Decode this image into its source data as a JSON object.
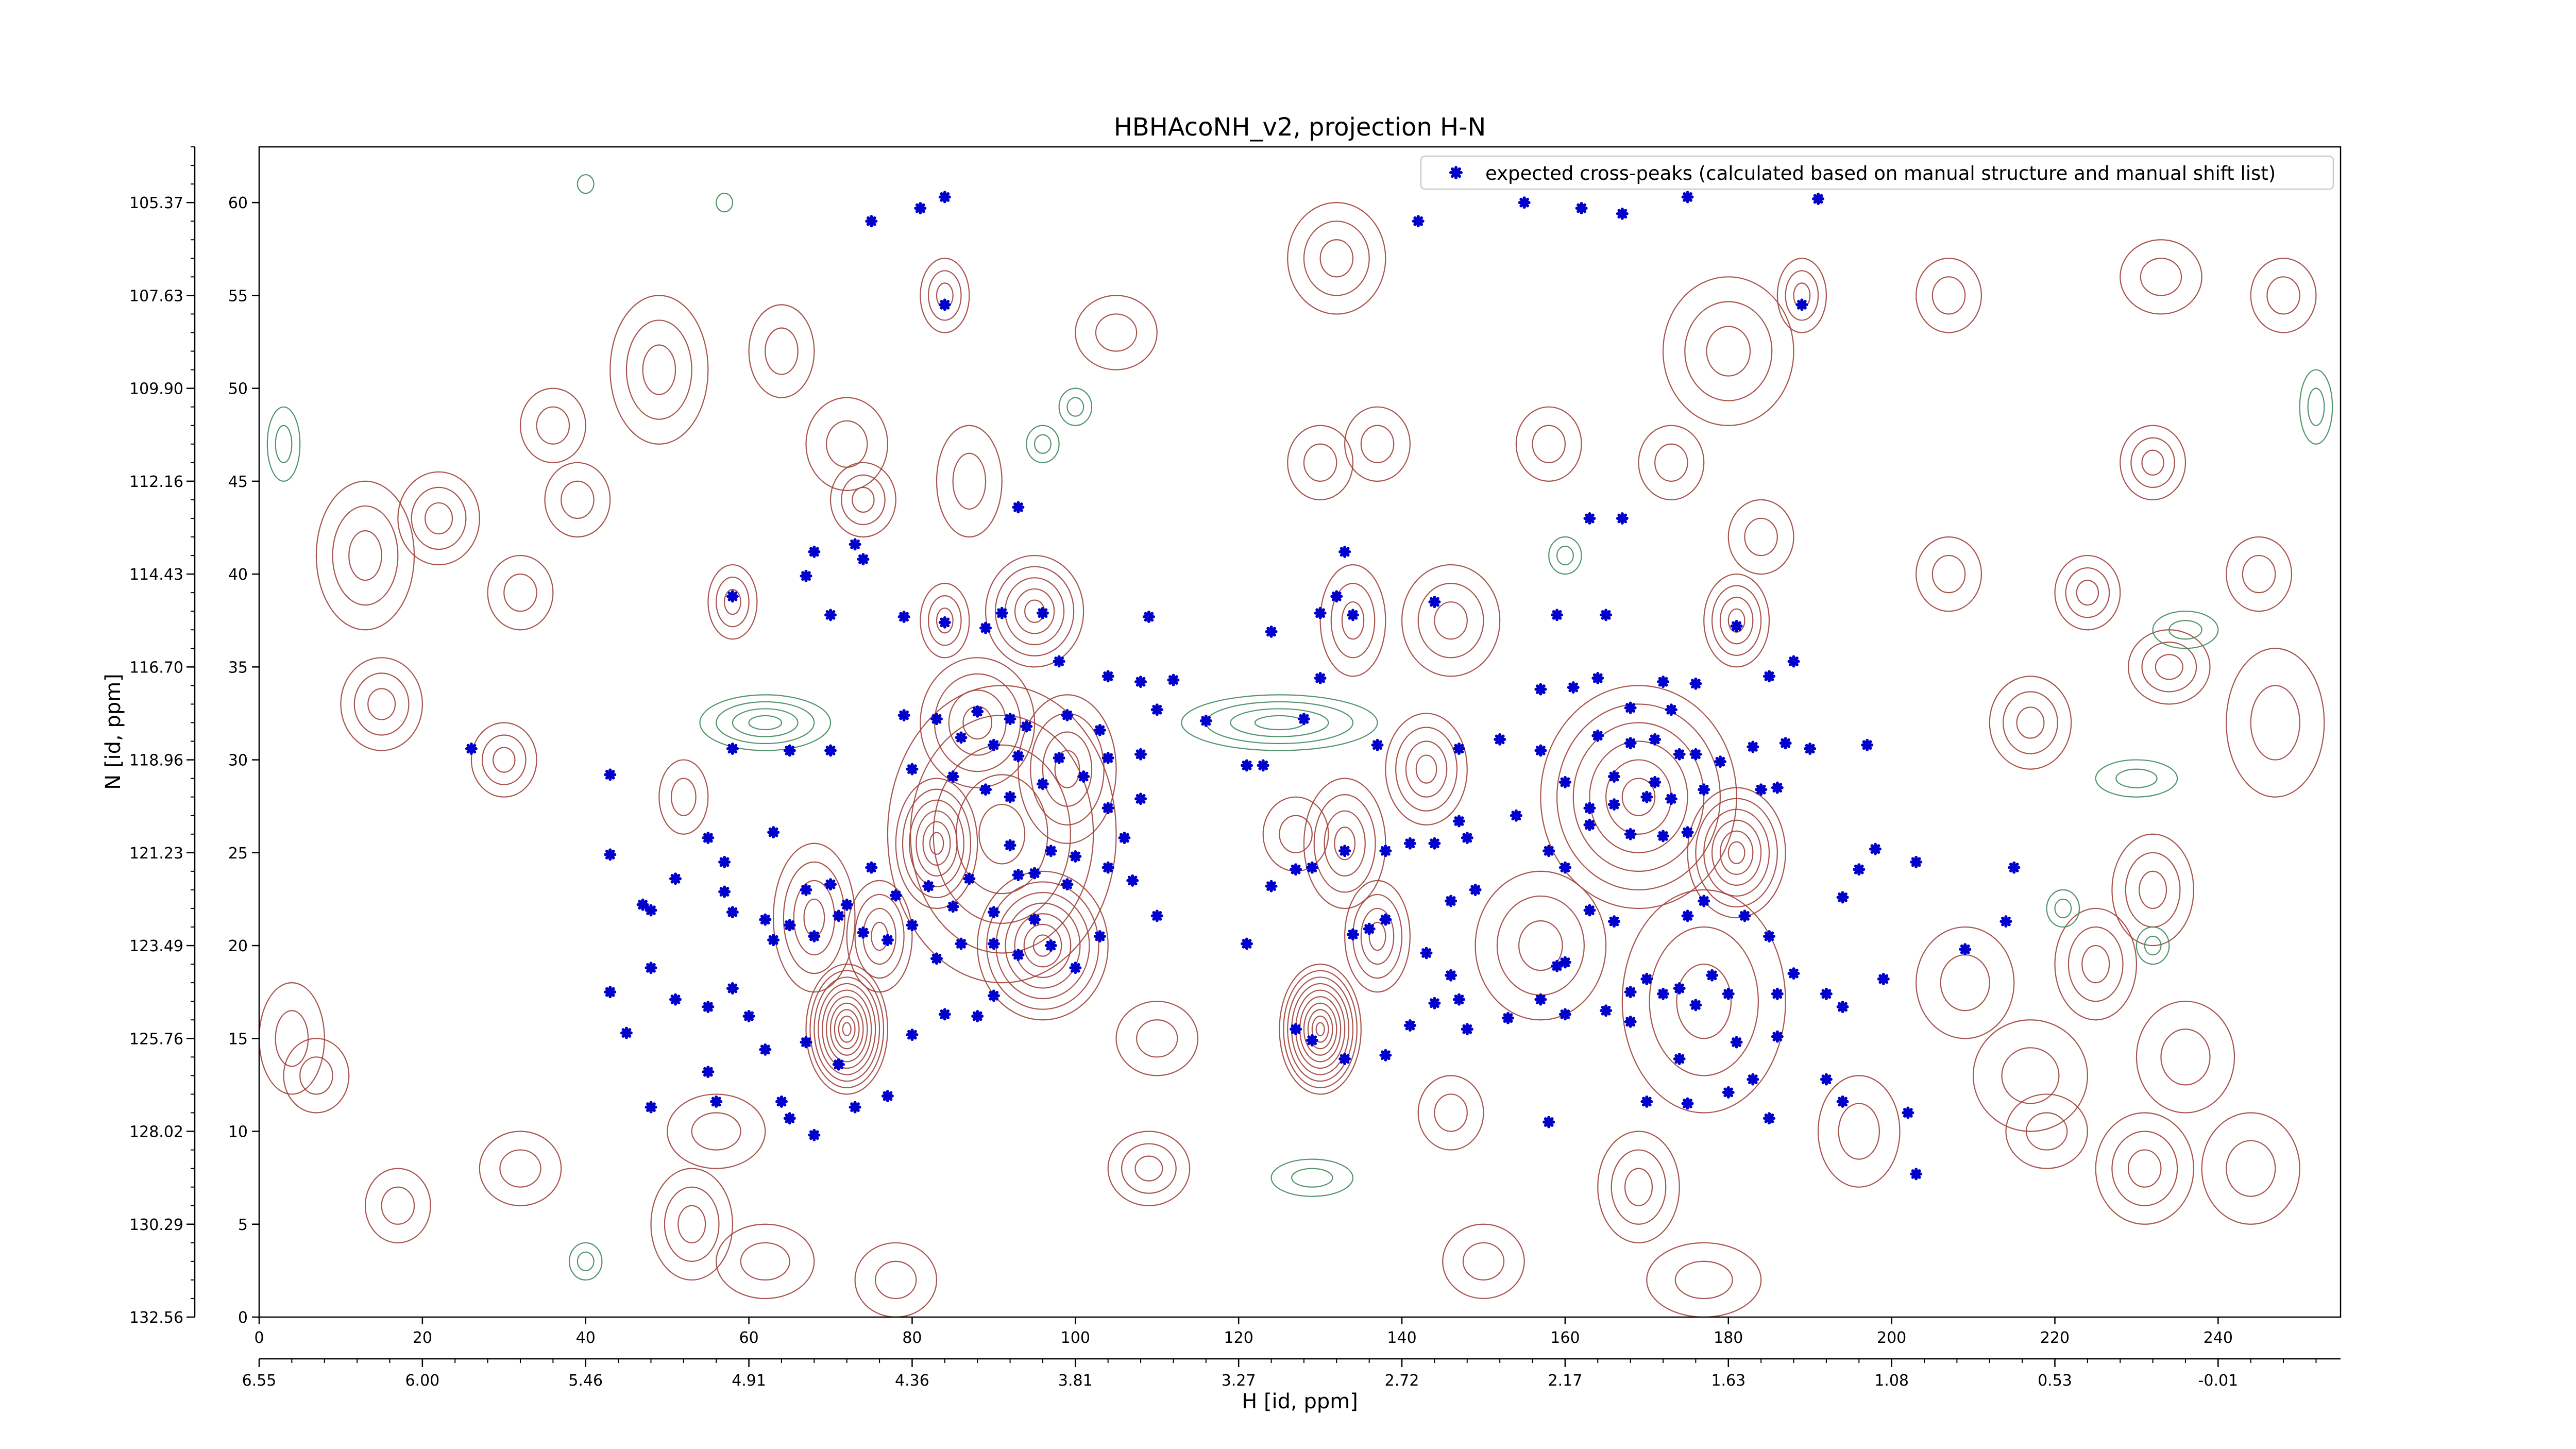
{
  "chart_data": {
    "type": "scatter",
    "title": "HBHAcoNH_v2, projection H-N",
    "xlabel": "H [id, ppm]",
    "ylabel": "N [id, ppm]",
    "xlim": [
      0,
      255
    ],
    "ylim": [
      0,
      63
    ],
    "x_ticks": [
      0,
      20,
      40,
      60,
      80,
      100,
      120,
      140,
      160,
      180,
      200,
      220,
      240
    ],
    "y_ticks": [
      0,
      5,
      10,
      15,
      20,
      25,
      30,
      35,
      40,
      45,
      50,
      55,
      60
    ],
    "x_ppm_labels": [
      "6.55",
      "6.00",
      "5.46",
      "4.91",
      "4.36",
      "3.81",
      "3.27",
      "2.72",
      "2.17",
      "1.63",
      "1.08",
      "0.53",
      "-0.01"
    ],
    "y_ppm_labels": [
      "132.56",
      "130.29",
      "128.02",
      "125.76",
      "123.49",
      "121.23",
      "118.96",
      "116.70",
      "114.43",
      "112.16",
      "109.90",
      "107.63",
      "105.37"
    ],
    "legend": {
      "placement": "top-right",
      "label": "expected cross-peaks (calculated based on manual structure and manual shift list)"
    },
    "colors": {
      "points": "#0000cc",
      "positive_contours": "#a0413a",
      "negative_contours": "#3f8a5a",
      "axes": "#000000"
    },
    "series": [
      {
        "name": "expected cross-peaks (calculated based on manual structure and manual shift list)",
        "points": [
          [
            75,
            59
          ],
          [
            81,
            59.7
          ],
          [
            84,
            60.3
          ],
          [
            142,
            59
          ],
          [
            155,
            60
          ],
          [
            162,
            59.7
          ],
          [
            167,
            59.4
          ],
          [
            175,
            60.3
          ],
          [
            191,
            60.2
          ],
          [
            84,
            54.5
          ],
          [
            189,
            54.5
          ],
          [
            93,
            43.6
          ],
          [
            163,
            43
          ],
          [
            167,
            43
          ],
          [
            73,
            41.6
          ],
          [
            74,
            40.8
          ],
          [
            68,
            41.2
          ],
          [
            67,
            39.9
          ],
          [
            133,
            41.2
          ],
          [
            58,
            38.8
          ],
          [
            70,
            37.8
          ],
          [
            79,
            37.7
          ],
          [
            84,
            37.4
          ],
          [
            89,
            37.1
          ],
          [
            91,
            37.9
          ],
          [
            96,
            37.9
          ],
          [
            109,
            37.7
          ],
          [
            124,
            36.9
          ],
          [
            130,
            37.9
          ],
          [
            132,
            38.8
          ],
          [
            134,
            37.8
          ],
          [
            144,
            38.5
          ],
          [
            159,
            37.8
          ],
          [
            165,
            37.8
          ],
          [
            181,
            37.2
          ],
          [
            98,
            35.3
          ],
          [
            104,
            34.5
          ],
          [
            108,
            34.2
          ],
          [
            110,
            32.7
          ],
          [
            112,
            34.3
          ],
          [
            130,
            34.4
          ],
          [
            157,
            33.8
          ],
          [
            161,
            33.9
          ],
          [
            164,
            34.4
          ],
          [
            172,
            34.2
          ],
          [
            176,
            34.1
          ],
          [
            185,
            34.5
          ],
          [
            188,
            35.3
          ],
          [
            79,
            32.4
          ],
          [
            83,
            32.2
          ],
          [
            88,
            32.6
          ],
          [
            92,
            32.2
          ],
          [
            94,
            31.8
          ],
          [
            99,
            32.4
          ],
          [
            103,
            31.6
          ],
          [
            86,
            31.2
          ],
          [
            90,
            30.8
          ],
          [
            93,
            30.2
          ],
          [
            98,
            30.1
          ],
          [
            104,
            30.1
          ],
          [
            108,
            30.3
          ],
          [
            80,
            29.5
          ],
          [
            85,
            29.1
          ],
          [
            89,
            28.4
          ],
          [
            92,
            28
          ],
          [
            96,
            28.7
          ],
          [
            101,
            29.1
          ],
          [
            26,
            30.6
          ],
          [
            43,
            29.2
          ],
          [
            58,
            30.6
          ],
          [
            65,
            30.5
          ],
          [
            70,
            30.5
          ],
          [
            116,
            32.1
          ],
          [
            121,
            29.7
          ],
          [
            123,
            29.7
          ],
          [
            128,
            32.2
          ],
          [
            137,
            30.8
          ],
          [
            147,
            30.6
          ],
          [
            152,
            31.1
          ],
          [
            157,
            30.5
          ],
          [
            160,
            28.8
          ],
          [
            166,
            29.1
          ],
          [
            171,
            28.8
          ],
          [
            176,
            30.3
          ],
          [
            179,
            29.9
          ],
          [
            183,
            30.7
          ],
          [
            187,
            30.9
          ],
          [
            190,
            30.6
          ],
          [
            197,
            30.8
          ],
          [
            164,
            31.3
          ],
          [
            168,
            30.9
          ],
          [
            171,
            31.1
          ],
          [
            174,
            30.3
          ],
          [
            168,
            32.8
          ],
          [
            173,
            32.7
          ],
          [
            163,
            27.4
          ],
          [
            166,
            27.6
          ],
          [
            170,
            28
          ],
          [
            173,
            27.9
          ],
          [
            177,
            28.4
          ],
          [
            184,
            28.4
          ],
          [
            186,
            28.5
          ],
          [
            163,
            26.5
          ],
          [
            168,
            26
          ],
          [
            172,
            25.9
          ],
          [
            175,
            26.1
          ],
          [
            158,
            25.1
          ],
          [
            160,
            24.2
          ],
          [
            43,
            24.9
          ],
          [
            47,
            22.2
          ],
          [
            55,
            25.8
          ],
          [
            57,
            24.5
          ],
          [
            58,
            21.8
          ],
          [
            63,
            20.3
          ],
          [
            48,
            21.9
          ],
          [
            51,
            23.6
          ],
          [
            57,
            22.9
          ],
          [
            63,
            26.1
          ],
          [
            92,
            25.4
          ],
          [
            95,
            23.9
          ],
          [
            97,
            25.1
          ],
          [
            100,
            24.8
          ],
          [
            104,
            27.4
          ],
          [
            106,
            25.8
          ],
          [
            108,
            27.9
          ],
          [
            67,
            23
          ],
          [
            70,
            23.3
          ],
          [
            72,
            22.2
          ],
          [
            75,
            24.2
          ],
          [
            78,
            22.7
          ],
          [
            82,
            23.2
          ],
          [
            85,
            22.1
          ],
          [
            87,
            23.6
          ],
          [
            90,
            21.8
          ],
          [
            93,
            23.8
          ],
          [
            99,
            23.3
          ],
          [
            104,
            24.2
          ],
          [
            107,
            23.5
          ],
          [
            62,
            21.4
          ],
          [
            65,
            21.1
          ],
          [
            68,
            20.5
          ],
          [
            71,
            21.6
          ],
          [
            74,
            20.7
          ],
          [
            77,
            20.3
          ],
          [
            80,
            21.1
          ],
          [
            83,
            19.3
          ],
          [
            86,
            20.1
          ],
          [
            90,
            20.1
          ],
          [
            93,
            19.5
          ],
          [
            95,
            21.4
          ],
          [
            97,
            20
          ],
          [
            100,
            18.8
          ],
          [
            103,
            20.5
          ],
          [
            110,
            21.6
          ],
          [
            124,
            23.2
          ],
          [
            127,
            24.1
          ],
          [
            129,
            24.2
          ],
          [
            133,
            25.1
          ],
          [
            138,
            25.1
          ],
          [
            141,
            25.5
          ],
          [
            144,
            25.5
          ],
          [
            147,
            26.7
          ],
          [
            148,
            25.8
          ],
          [
            154,
            27
          ],
          [
            146,
            22.4
          ],
          [
            149,
            23
          ],
          [
            134,
            20.6
          ],
          [
            136,
            20.9
          ],
          [
            138,
            21.4
          ],
          [
            143,
            19.6
          ],
          [
            146,
            18.4
          ],
          [
            147,
            17.1
          ],
          [
            160,
            19.1
          ],
          [
            163,
            21.9
          ],
          [
            166,
            21.3
          ],
          [
            168,
            17.5
          ],
          [
            172,
            17.4
          ],
          [
            175,
            21.6
          ],
          [
            177,
            22.4
          ],
          [
            170,
            18.2
          ],
          [
            174,
            17.7
          ],
          [
            176,
            16.8
          ],
          [
            178,
            18.4
          ],
          [
            180,
            17.4
          ],
          [
            182,
            21.6
          ],
          [
            185,
            20.5
          ],
          [
            186,
            17.4
          ],
          [
            188,
            18.5
          ],
          [
            192,
            17.4
          ],
          [
            194,
            16.7
          ],
          [
            199,
            18.2
          ],
          [
            194,
            22.6
          ],
          [
            196,
            24.1
          ],
          [
            198,
            25.2
          ],
          [
            203,
            24.5
          ],
          [
            209,
            19.8
          ],
          [
            214,
            21.3
          ],
          [
            215,
            24.2
          ],
          [
            48,
            18.8
          ],
          [
            51,
            17.1
          ],
          [
            55,
            16.7
          ],
          [
            58,
            17.7
          ],
          [
            60,
            16.2
          ],
          [
            62,
            14.4
          ],
          [
            67,
            14.8
          ],
          [
            71,
            13.6
          ],
          [
            80,
            15.2
          ],
          [
            84,
            16.3
          ],
          [
            88,
            16.2
          ],
          [
            90,
            17.3
          ],
          [
            121,
            20.1
          ],
          [
            127,
            15.5
          ],
          [
            129,
            14.9
          ],
          [
            133,
            13.9
          ],
          [
            138,
            14.1
          ],
          [
            141,
            15.7
          ],
          [
            144,
            16.9
          ],
          [
            148,
            15.5
          ],
          [
            153,
            16.1
          ],
          [
            157,
            17.1
          ],
          [
            159,
            18.9
          ],
          [
            160,
            16.3
          ],
          [
            165,
            16.5
          ],
          [
            168,
            15.9
          ],
          [
            174,
            13.9
          ],
          [
            181,
            14.8
          ],
          [
            183,
            12.8
          ],
          [
            186,
            15.1
          ],
          [
            192,
            12.8
          ],
          [
            194,
            11.6
          ],
          [
            202,
            11
          ],
          [
            43,
            17.5
          ],
          [
            45,
            15.3
          ],
          [
            48,
            11.3
          ],
          [
            55,
            13.2
          ],
          [
            56,
            11.6
          ],
          [
            64,
            11.6
          ],
          [
            65,
            10.7
          ],
          [
            68,
            9.8
          ],
          [
            73,
            11.3
          ],
          [
            77,
            11.9
          ],
          [
            158,
            10.5
          ],
          [
            170,
            11.6
          ],
          [
            175,
            11.5
          ],
          [
            180,
            12.1
          ],
          [
            185,
            10.7
          ],
          [
            203,
            7.7
          ]
        ]
      }
    ]
  }
}
